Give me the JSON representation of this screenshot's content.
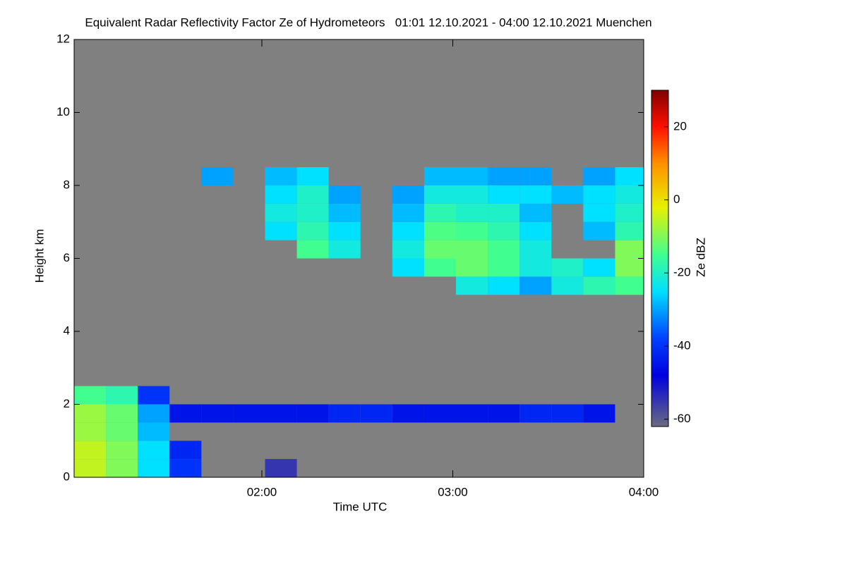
{
  "chart_data": {
    "type": "heatmap",
    "title": "Equivalent Radar Reflectivity Factor Ze of Hydrometeors   01:01 12.10.2021 - 04:00 12.10.2021 Muenchen",
    "x_label": "Time UTC",
    "y_label": "Height km",
    "colorbar_label": "Ze dBZ",
    "x": [
      61,
      71,
      81,
      91,
      101,
      111,
      121,
      131,
      141,
      151,
      161,
      171,
      181,
      191,
      201,
      211,
      221,
      231
    ],
    "x_step": 10,
    "y": [
      0,
      0.5,
      1,
      1.5,
      2,
      2.5,
      3,
      3.5,
      4,
      4.5,
      5,
      5.5,
      6,
      6.5,
      7,
      7.5,
      8,
      8.5,
      9,
      9.5,
      10,
      10.5,
      11,
      11.5
    ],
    "y_step": 0.5,
    "z": [
      [
        -5,
        -10,
        -25,
        -40,
        null,
        null,
        -55,
        null,
        null,
        null,
        null,
        null,
        null,
        null,
        null,
        null,
        null,
        null
      ],
      [
        -5,
        -10,
        -25,
        -42,
        null,
        null,
        null,
        null,
        null,
        null,
        null,
        null,
        null,
        null,
        null,
        null,
        null,
        null
      ],
      [
        -8,
        -12,
        -28,
        null,
        null,
        null,
        null,
        null,
        null,
        null,
        null,
        null,
        null,
        null,
        null,
        null,
        null,
        null
      ],
      [
        -8,
        -12,
        -30,
        -45,
        -45,
        -45,
        -45,
        -45,
        -42,
        -42,
        -45,
        -45,
        -45,
        -45,
        -42,
        -42,
        -45,
        null
      ],
      [
        -15,
        -18,
        -40,
        null,
        null,
        null,
        null,
        null,
        null,
        null,
        null,
        null,
        null,
        null,
        null,
        null,
        null,
        null
      ],
      [
        null,
        null,
        null,
        null,
        null,
        null,
        null,
        null,
        null,
        null,
        null,
        null,
        null,
        null,
        null,
        null,
        null,
        null
      ],
      [
        null,
        null,
        null,
        null,
        null,
        null,
        null,
        null,
        null,
        null,
        null,
        null,
        null,
        null,
        null,
        null,
        null,
        null
      ],
      [
        null,
        null,
        null,
        null,
        null,
        null,
        null,
        null,
        null,
        null,
        null,
        null,
        null,
        null,
        null,
        null,
        null,
        null
      ],
      [
        null,
        null,
        null,
        null,
        null,
        null,
        null,
        null,
        null,
        null,
        null,
        null,
        null,
        null,
        null,
        null,
        null,
        null
      ],
      [
        null,
        null,
        null,
        null,
        null,
        null,
        null,
        null,
        null,
        null,
        null,
        null,
        null,
        null,
        null,
        null,
        null,
        null
      ],
      [
        null,
        null,
        null,
        null,
        null,
        null,
        null,
        null,
        null,
        null,
        null,
        null,
        -22,
        -25,
        -30,
        -22,
        -18,
        -15
      ],
      [
        null,
        null,
        null,
        null,
        null,
        null,
        null,
        null,
        null,
        null,
        -25,
        -15,
        -12,
        -15,
        -22,
        -20,
        -25,
        -10
      ],
      [
        null,
        null,
        null,
        null,
        null,
        null,
        null,
        -15,
        -22,
        null,
        -22,
        -12,
        -12,
        -15,
        -22,
        null,
        null,
        -10
      ],
      [
        null,
        null,
        null,
        null,
        null,
        null,
        -25,
        -18,
        -25,
        null,
        -25,
        -14,
        -15,
        -18,
        -25,
        null,
        -28,
        -18
      ],
      [
        null,
        null,
        null,
        null,
        null,
        null,
        -22,
        -20,
        -28,
        null,
        -28,
        -18,
        -20,
        -20,
        -28,
        null,
        -25,
        -20
      ],
      [
        null,
        null,
        null,
        null,
        null,
        null,
        -25,
        -20,
        -30,
        null,
        -30,
        -22,
        -22,
        -25,
        -25,
        -28,
        -25,
        -22
      ],
      [
        null,
        null,
        null,
        null,
        -30,
        null,
        -28,
        -25,
        null,
        null,
        null,
        -28,
        -28,
        -30,
        -30,
        null,
        -30,
        -25
      ],
      [
        null,
        null,
        null,
        null,
        null,
        null,
        null,
        null,
        null,
        null,
        null,
        null,
        null,
        null,
        null,
        null,
        null,
        null
      ],
      [
        null,
        null,
        null,
        null,
        null,
        null,
        null,
        null,
        null,
        null,
        null,
        null,
        null,
        null,
        null,
        null,
        null,
        null
      ],
      [
        null,
        null,
        null,
        null,
        null,
        null,
        null,
        null,
        null,
        null,
        null,
        null,
        null,
        null,
        null,
        null,
        null,
        null
      ],
      [
        null,
        null,
        null,
        null,
        null,
        null,
        null,
        null,
        null,
        null,
        null,
        null,
        null,
        null,
        null,
        null,
        null,
        null
      ],
      [
        null,
        null,
        null,
        null,
        null,
        null,
        null,
        null,
        null,
        null,
        null,
        null,
        null,
        null,
        null,
        null,
        null,
        null
      ],
      [
        null,
        null,
        null,
        null,
        null,
        null,
        null,
        null,
        null,
        null,
        null,
        null,
        null,
        null,
        null,
        null,
        null,
        null
      ],
      [
        null,
        null,
        null,
        null,
        null,
        null,
        null,
        null,
        null,
        null,
        null,
        null,
        null,
        null,
        null,
        null,
        null,
        null
      ]
    ],
    "xlim": [
      61,
      240
    ],
    "ylim": [
      0,
      12
    ],
    "xticks": [
      {
        "value": 120,
        "label": "02:00"
      },
      {
        "value": 180,
        "label": "03:00"
      },
      {
        "value": 240,
        "label": "04:00"
      }
    ],
    "yticks": [
      0,
      2,
      4,
      6,
      8,
      10,
      12
    ],
    "colorlim": [
      -62,
      30
    ],
    "colorticks": [
      -60,
      -40,
      -20,
      0,
      20
    ],
    "background": "#808080",
    "colorscale": [
      {
        "value": -62,
        "color": "#6a6a80"
      },
      {
        "value": -48,
        "color": "#0000e0"
      },
      {
        "value": -38,
        "color": "#0040ff"
      },
      {
        "value": -25,
        "color": "#00e0ff"
      },
      {
        "value": -15,
        "color": "#40ff90"
      },
      {
        "value": -2,
        "color": "#e8f000"
      },
      {
        "value": 10,
        "color": "#ff9000"
      },
      {
        "value": 20,
        "color": "#ff1000"
      },
      {
        "value": 30,
        "color": "#800000"
      }
    ]
  }
}
